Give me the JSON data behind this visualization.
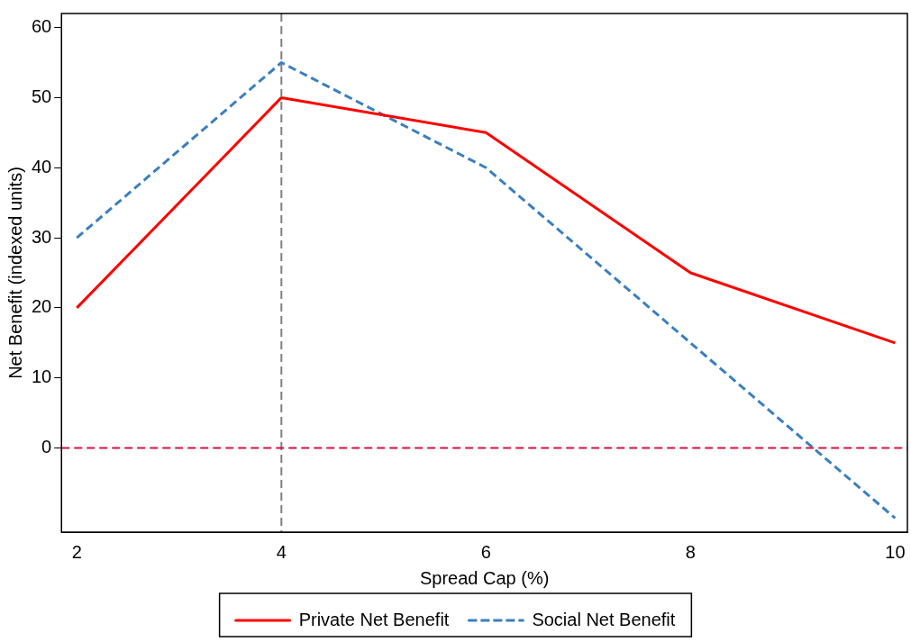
{
  "chart_data": {
    "type": "line",
    "xlabel": "Spread Cap (%)",
    "ylabel": "Net Benefit (indexed units)",
    "x": [
      2,
      4,
      6,
      8,
      10
    ],
    "series": [
      {
        "name": "Private Net Benefit",
        "color": "#ff0000",
        "values": [
          20,
          50,
          45,
          25,
          15
        ],
        "line_style": "solid"
      },
      {
        "name": "Social Net Benefit",
        "color": "#3a7fbf",
        "values": [
          30,
          55,
          40,
          15,
          -10
        ],
        "line_style": "dashed"
      }
    ],
    "xlim": [
      1.85,
      10.12
    ],
    "xticks": [
      2,
      4,
      6,
      8,
      10
    ],
    "ylim": [
      -12,
      62
    ],
    "yticks": [
      0,
      10,
      20,
      30,
      40,
      50,
      60
    ],
    "ref_lines": [
      {
        "axis": "x",
        "value": 4,
        "color": "#808080",
        "line_style": "dashed"
      },
      {
        "axis": "y",
        "value": 0,
        "color": "#d2143c",
        "line_style": "dashed"
      }
    ],
    "grid": false,
    "legend": "bottom",
    "marker": "none"
  }
}
